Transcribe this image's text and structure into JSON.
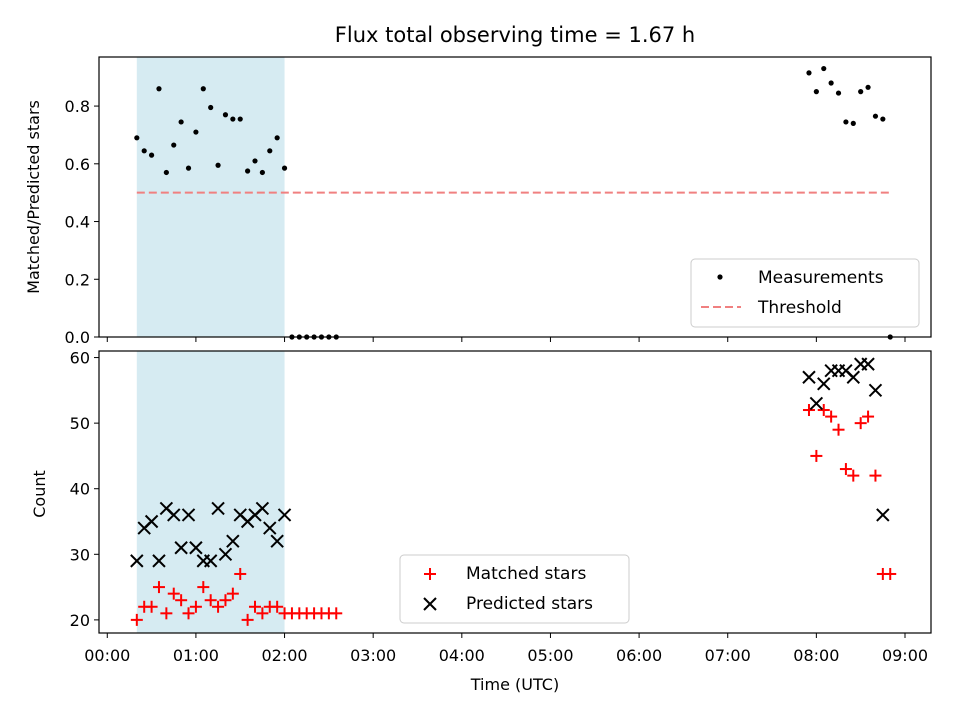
{
  "chart_data": [
    {
      "type": "scatter",
      "title": "Flux total observing time = 1.67 h",
      "xlabel": "",
      "ylabel": "Matched/Predicted stars",
      "xlim": [
        "00:00",
        "09:00"
      ],
      "ylim": [
        0,
        0.97
      ],
      "yticks": [
        0.0,
        0.2,
        0.4,
        0.6,
        0.8
      ],
      "ytick_labels": [
        "0.0",
        "0.2",
        "0.4",
        "0.6",
        "0.8"
      ],
      "shaded_span": [
        "00:20",
        "02:00"
      ],
      "legend_position": "lower-right",
      "series": [
        {
          "name": "Measurements",
          "marker": "dot",
          "color": "#000000",
          "points": [
            [
              "00:20",
              0.69
            ],
            [
              "00:25",
              0.645
            ],
            [
              "00:30",
              0.63
            ],
            [
              "00:35",
              0.86
            ],
            [
              "00:40",
              0.57
            ],
            [
              "00:45",
              0.665
            ],
            [
              "00:50",
              0.745
            ],
            [
              "00:55",
              0.585
            ],
            [
              "01:00",
              0.71
            ],
            [
              "01:05",
              0.86
            ],
            [
              "01:10",
              0.795
            ],
            [
              "01:15",
              0.595
            ],
            [
              "01:20",
              0.77
            ],
            [
              "01:25",
              0.755
            ],
            [
              "01:30",
              0.755
            ],
            [
              "01:35",
              0.575
            ],
            [
              "01:40",
              0.61
            ],
            [
              "01:45",
              0.57
            ],
            [
              "01:50",
              0.645
            ],
            [
              "01:55",
              0.69
            ],
            [
              "02:00",
              0.585
            ],
            [
              "02:05",
              0.0
            ],
            [
              "02:10",
              0.0
            ],
            [
              "02:15",
              0.0
            ],
            [
              "02:20",
              0.0
            ],
            [
              "02:25",
              0.0
            ],
            [
              "02:30",
              0.0
            ],
            [
              "02:35",
              0.0
            ],
            [
              "07:55",
              0.915
            ],
            [
              "08:00",
              0.85
            ],
            [
              "08:05",
              0.93
            ],
            [
              "08:10",
              0.88
            ],
            [
              "08:15",
              0.845
            ],
            [
              "08:20",
              0.745
            ],
            [
              "08:25",
              0.74
            ],
            [
              "08:30",
              0.85
            ],
            [
              "08:35",
              0.865
            ],
            [
              "08:40",
              0.765
            ],
            [
              "08:45",
              0.755
            ],
            [
              "08:50",
              0.0
            ]
          ]
        },
        {
          "name": "Threshold",
          "style": "dashed",
          "color": "#f08080",
          "points": [
            [
              "00:20",
              0.5
            ],
            [
              "08:50",
              0.5
            ]
          ]
        }
      ]
    },
    {
      "type": "scatter",
      "title": "",
      "xlabel": "Time (UTC)",
      "ylabel": "Count",
      "xlim": [
        "00:00",
        "09:00"
      ],
      "ylim": [
        18,
        61
      ],
      "yticks": [
        20,
        30,
        40,
        50,
        60
      ],
      "ytick_labels": [
        "20",
        "30",
        "40",
        "50",
        "60"
      ],
      "xticks": [
        "00:00",
        "01:00",
        "02:00",
        "03:00",
        "04:00",
        "05:00",
        "06:00",
        "07:00",
        "08:00",
        "09:00"
      ],
      "shaded_span": [
        "00:20",
        "02:00"
      ],
      "legend_position": "lower-center",
      "series": [
        {
          "name": "Matched stars",
          "marker": "plus",
          "color": "#ff0000",
          "points": [
            [
              "00:20",
              20
            ],
            [
              "00:25",
              22
            ],
            [
              "00:30",
              22
            ],
            [
              "00:35",
              25
            ],
            [
              "00:40",
              21
            ],
            [
              "00:45",
              24
            ],
            [
              "00:50",
              23
            ],
            [
              "00:55",
              21
            ],
            [
              "01:00",
              22
            ],
            [
              "01:05",
              25
            ],
            [
              "01:10",
              23
            ],
            [
              "01:15",
              22
            ],
            [
              "01:20",
              23
            ],
            [
              "01:25",
              24
            ],
            [
              "01:30",
              27
            ],
            [
              "01:35",
              20
            ],
            [
              "01:40",
              22
            ],
            [
              "01:45",
              21
            ],
            [
              "01:50",
              22
            ],
            [
              "01:55",
              22
            ],
            [
              "02:00",
              21
            ],
            [
              "02:05",
              21
            ],
            [
              "02:10",
              21
            ],
            [
              "02:15",
              21
            ],
            [
              "02:20",
              21
            ],
            [
              "02:25",
              21
            ],
            [
              "02:30",
              21
            ],
            [
              "02:35",
              21
            ],
            [
              "07:55",
              52
            ],
            [
              "08:00",
              45
            ],
            [
              "08:05",
              52
            ],
            [
              "08:10",
              51
            ],
            [
              "08:15",
              49
            ],
            [
              "08:20",
              43
            ],
            [
              "08:25",
              42
            ],
            [
              "08:30",
              50
            ],
            [
              "08:35",
              51
            ],
            [
              "08:40",
              42
            ],
            [
              "08:45",
              27
            ],
            [
              "08:50",
              27
            ]
          ]
        },
        {
          "name": "Predicted stars",
          "marker": "x",
          "color": "#000000",
          "points": [
            [
              "00:20",
              29
            ],
            [
              "00:25",
              34
            ],
            [
              "00:30",
              35
            ],
            [
              "00:35",
              29
            ],
            [
              "00:40",
              37
            ],
            [
              "00:45",
              36
            ],
            [
              "00:50",
              31
            ],
            [
              "00:55",
              36
            ],
            [
              "01:00",
              31
            ],
            [
              "01:05",
              29
            ],
            [
              "01:10",
              29
            ],
            [
              "01:15",
              37
            ],
            [
              "01:20",
              30
            ],
            [
              "01:25",
              32
            ],
            [
              "01:30",
              36
            ],
            [
              "01:35",
              35
            ],
            [
              "01:40",
              36
            ],
            [
              "01:45",
              37
            ],
            [
              "01:50",
              34
            ],
            [
              "01:55",
              32
            ],
            [
              "02:00",
              36
            ],
            [
              "07:55",
              57
            ],
            [
              "08:00",
              53
            ],
            [
              "08:05",
              56
            ],
            [
              "08:10",
              58
            ],
            [
              "08:15",
              58
            ],
            [
              "08:20",
              58
            ],
            [
              "08:25",
              57
            ],
            [
              "08:30",
              59
            ],
            [
              "08:35",
              59
            ],
            [
              "08:40",
              55
            ],
            [
              "08:45",
              36
            ]
          ]
        }
      ]
    }
  ]
}
